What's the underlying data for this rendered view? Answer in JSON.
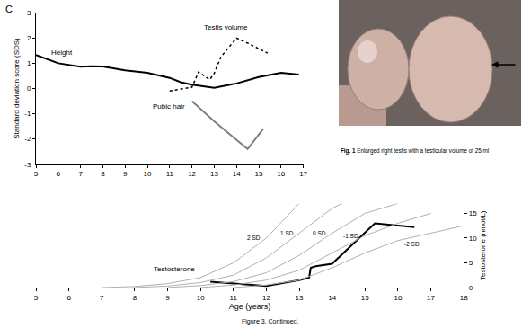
{
  "panel_label": "C",
  "figure_caption": "Figure 3. Continued.",
  "photo": {
    "caption_label": "Fig. 1",
    "caption_text": "Enlarged right testis with a testicular volume of 25 ml"
  },
  "chart_data": [
    {
      "type": "line",
      "y_label": "Standard deviation score (SDS)",
      "xlim": [
        5,
        17
      ],
      "xticks": [
        5,
        6,
        7,
        8,
        9,
        10,
        11,
        12,
        13,
        14,
        15,
        16,
        17
      ],
      "ylim": [
        -3,
        3
      ],
      "yticks": [
        -3,
        -2,
        -1,
        0,
        1,
        2,
        3
      ],
      "grid": false,
      "series": [
        {
          "name": "Height",
          "color": "#000000",
          "line_style": "solid",
          "x": [
            5,
            6,
            7,
            7.5,
            8,
            9,
            10,
            11,
            11.5,
            12,
            13,
            14,
            15,
            16,
            16.8
          ],
          "values": [
            1.33,
            1.0,
            0.86,
            0.88,
            0.87,
            0.72,
            0.62,
            0.42,
            0.25,
            0.15,
            0.03,
            0.2,
            0.45,
            0.62,
            0.55
          ]
        },
        {
          "name": "Testis volume",
          "color": "#000000",
          "line_style": "dot",
          "x": [
            11,
            12,
            12.3,
            12.6,
            12.8,
            13,
            13.3,
            14,
            14.5,
            15.4
          ],
          "values": [
            -0.1,
            0.05,
            0.65,
            0.45,
            0.35,
            0.6,
            1.25,
            2.0,
            1.8,
            1.4
          ]
        },
        {
          "name": "Pubic hair",
          "color": "#808080",
          "line_style": "solid",
          "x": [
            12,
            13,
            14.5,
            15.2
          ],
          "values": [
            -0.5,
            -1.3,
            -2.4,
            -1.6
          ]
        }
      ]
    },
    {
      "type": "line",
      "x_label": "Age (years)",
      "y_label": "Testosterone (nmol/L)",
      "xlim": [
        5,
        18
      ],
      "xticks": [
        5,
        6,
        7,
        8,
        9,
        10,
        11,
        12,
        13,
        14,
        15,
        16,
        17,
        18
      ],
      "ylim": [
        0,
        17
      ],
      "yticks": [
        0,
        5,
        10,
        15
      ],
      "grid": false,
      "series": [
        {
          "name": "Testosterone",
          "color": "#000000",
          "line_style": "solid",
          "x": [
            10.3,
            11,
            12,
            13,
            13.3,
            13.35,
            13.5,
            14,
            15.3,
            16.5
          ],
          "values": [
            1.2,
            0.8,
            0.3,
            1.5,
            2.0,
            4.0,
            4.3,
            4.8,
            13.0,
            12.2
          ]
        },
        {
          "name": "2 SD",
          "color": "#b0b0b0",
          "line_style": "solid",
          "x": [
            7,
            8,
            9,
            10,
            11,
            12,
            13
          ],
          "values": [
            0,
            0.2,
            0.8,
            2,
            5,
            10,
            17
          ]
        },
        {
          "name": "1 SD",
          "color": "#b0b0b0",
          "line_style": "solid",
          "x": [
            8,
            9,
            10,
            11,
            12,
            13,
            14,
            14.3
          ],
          "values": [
            0,
            0.3,
            1,
            2.5,
            6,
            11,
            16,
            17
          ]
        },
        {
          "name": "0 SD",
          "color": "#b0b0b0",
          "line_style": "solid",
          "x": [
            9,
            10,
            11,
            12,
            13,
            14,
            15,
            16
          ],
          "values": [
            0,
            0.4,
            1.2,
            3,
            6.5,
            11,
            15,
            17
          ]
        },
        {
          "name": "-1 SD",
          "color": "#b0b0b0",
          "line_style": "solid",
          "x": [
            10,
            11,
            12,
            13,
            14,
            15,
            16,
            17
          ],
          "values": [
            0,
            0.5,
            1.5,
            3.5,
            7,
            10.5,
            13,
            15
          ]
        },
        {
          "name": "-2 SD",
          "color": "#b0b0b0",
          "line_style": "solid",
          "x": [
            11,
            12,
            13,
            14,
            15,
            16,
            17,
            18
          ],
          "values": [
            0,
            0.5,
            1.5,
            4,
            7,
            9.5,
            11,
            12.5
          ]
        }
      ]
    }
  ]
}
